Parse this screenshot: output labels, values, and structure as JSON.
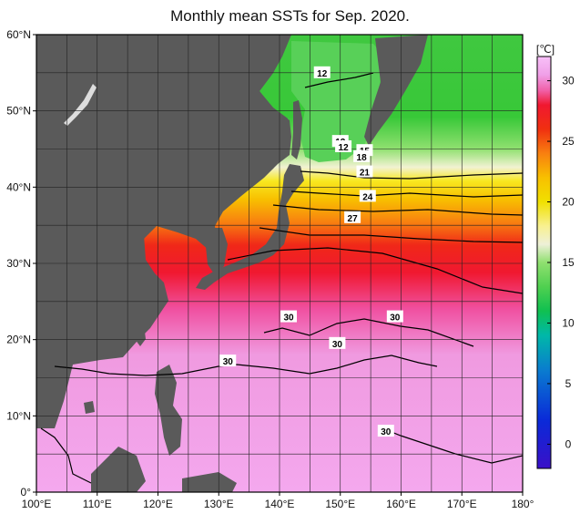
{
  "title": "Monthly mean SSTs for Sep. 2020.",
  "map": {
    "lon_range": [
      100,
      180
    ],
    "lat_range": [
      0,
      60
    ],
    "lon_ticks": [
      {
        "value": 100,
        "label": "100°E"
      },
      {
        "value": 110,
        "label": "110°E"
      },
      {
        "value": 120,
        "label": "120°E"
      },
      {
        "value": 130,
        "label": "130°E"
      },
      {
        "value": 140,
        "label": "140°E"
      },
      {
        "value": 150,
        "label": "150°E"
      },
      {
        "value": 160,
        "label": "160°E"
      },
      {
        "value": 170,
        "label": "170°E"
      },
      {
        "value": 180,
        "label": "180°"
      }
    ],
    "lat_ticks": [
      {
        "value": 0,
        "label": "0°"
      },
      {
        "value": 10,
        "label": "10°N"
      },
      {
        "value": 20,
        "label": "20°N"
      },
      {
        "value": 30,
        "label": "30°N"
      },
      {
        "value": 40,
        "label": "40°N"
      },
      {
        "value": 50,
        "label": "50°N"
      },
      {
        "value": 60,
        "label": "60°N"
      }
    ],
    "grid": true,
    "colors": {
      "land": "#5a5a5a",
      "grid": "#222222"
    },
    "isotherm_labels": [
      {
        "text": "12",
        "lon": 147,
        "lat": 55
      },
      {
        "text": "12",
        "lon": 150,
        "lat": 46
      },
      {
        "text": "12",
        "lon": 150.5,
        "lat": 45.3
      },
      {
        "text": "15",
        "lon": 154,
        "lat": 44.8
      },
      {
        "text": "18",
        "lon": 153.5,
        "lat": 44
      },
      {
        "text": "21",
        "lon": 154,
        "lat": 42
      },
      {
        "text": "24",
        "lon": 154.5,
        "lat": 38.8
      },
      {
        "text": "27",
        "lon": 152,
        "lat": 36
      },
      {
        "text": "30",
        "lon": 141.5,
        "lat": 23
      },
      {
        "text": "30",
        "lon": 159,
        "lat": 23
      },
      {
        "text": "30",
        "lon": 149.5,
        "lat": 19.5
      },
      {
        "text": "30",
        "lon": 131.5,
        "lat": 17.2
      },
      {
        "text": "30",
        "lon": 157.5,
        "lat": 8
      }
    ]
  },
  "colorbar": {
    "unit": "[℃]",
    "range": [
      -2,
      32
    ],
    "ticks": [
      {
        "value": 0,
        "label": "0"
      },
      {
        "value": 5,
        "label": "5"
      },
      {
        "value": 10,
        "label": "10"
      },
      {
        "value": 15,
        "label": "15"
      },
      {
        "value": 20,
        "label": "20"
      },
      {
        "value": 25,
        "label": "25"
      },
      {
        "value": 30,
        "label": "30"
      }
    ],
    "stops": [
      {
        "value": -2,
        "color": "#3a10c8"
      },
      {
        "value": 2,
        "color": "#0a2ad8"
      },
      {
        "value": 6,
        "color": "#0a7ad0"
      },
      {
        "value": 9,
        "color": "#00b8a8"
      },
      {
        "value": 11,
        "color": "#10c050"
      },
      {
        "value": 13,
        "color": "#50d050"
      },
      {
        "value": 15,
        "color": "#90e070"
      },
      {
        "value": 16.5,
        "color": "#eef0d8"
      },
      {
        "value": 18,
        "color": "#f8f090"
      },
      {
        "value": 20,
        "color": "#f0e000"
      },
      {
        "value": 22,
        "color": "#f8c000"
      },
      {
        "value": 24,
        "color": "#f88010"
      },
      {
        "value": 26,
        "color": "#f03010"
      },
      {
        "value": 28,
        "color": "#f01830"
      },
      {
        "value": 29.2,
        "color": "#f060a8"
      },
      {
        "value": 30.5,
        "color": "#f0a0e8"
      },
      {
        "value": 32,
        "color": "#f8c0f8"
      }
    ]
  }
}
